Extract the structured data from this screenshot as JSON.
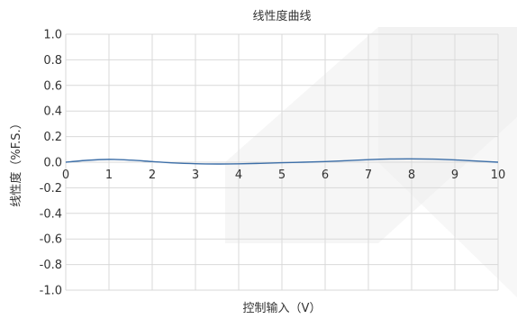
{
  "chart_data": {
    "type": "line",
    "title": "线性度曲线",
    "xlabel": "控制输入（V）",
    "ylabel": "线性度（%F.S.）",
    "xlim": [
      0,
      10
    ],
    "ylim": [
      -1.0,
      1.0
    ],
    "x_ticks": [
      0,
      1,
      2,
      3,
      4,
      5,
      6,
      7,
      8,
      9,
      10
    ],
    "x_tick_labels": [
      "0",
      "1",
      "2",
      "3",
      "4",
      "5",
      "6",
      "7",
      "8",
      "9",
      "10"
    ],
    "y_ticks": [
      1.0,
      0.8,
      0.6,
      0.4,
      0.2,
      0.0,
      -0.2,
      -0.4,
      -0.6,
      -0.8,
      -1.0
    ],
    "y_tick_labels": [
      "1.0",
      "0.8",
      "0.6",
      "0.4",
      "0.2",
      "0.0",
      "-0.2",
      "-0.4",
      "-0.6",
      "-0.8",
      "-1.0"
    ],
    "grid": true,
    "series": [
      {
        "color": "#3d6fa8",
        "x": [
          0,
          0.5,
          1,
          1.5,
          2,
          2.5,
          3,
          3.5,
          4,
          4.5,
          5,
          5.5,
          6,
          6.5,
          7,
          7.5,
          8,
          8.5,
          9,
          9.5,
          10
        ],
        "y": [
          0.0,
          0.015,
          0.022,
          0.016,
          0.005,
          -0.006,
          -0.012,
          -0.014,
          -0.013,
          -0.009,
          -0.004,
          0.0,
          0.005,
          0.012,
          0.02,
          0.025,
          0.026,
          0.024,
          0.018,
          0.009,
          0.0
        ]
      }
    ]
  },
  "colors": {
    "grid": "#d9d9d9",
    "axis": "#999999",
    "watermark": "#eeeeee"
  }
}
